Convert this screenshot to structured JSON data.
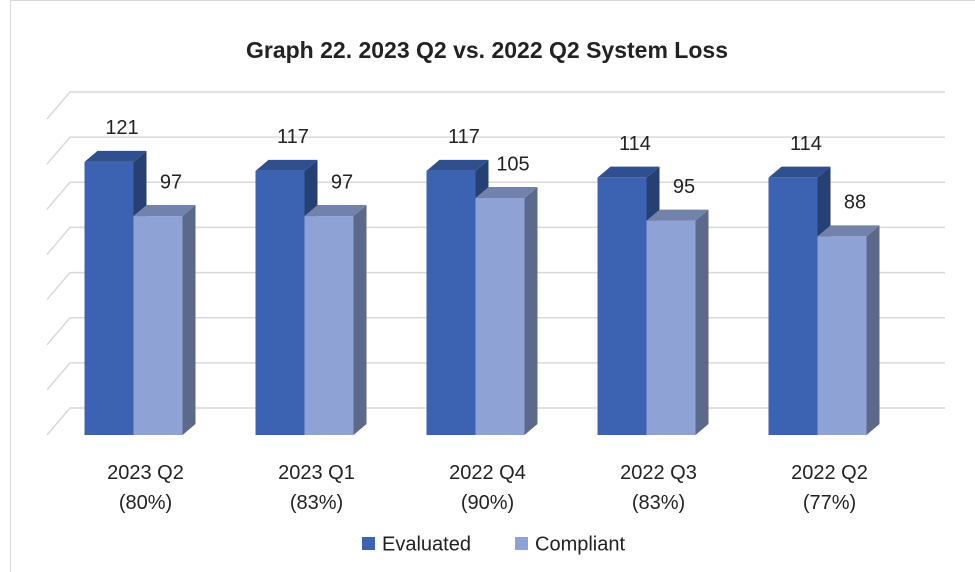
{
  "chart_data": {
    "type": "bar3d",
    "title": "Graph 22. 2023 Q2 vs. 2022 Q2 System Loss",
    "categories": [
      "2023 Q2\n(80%)",
      "2023 Q1\n(83%)",
      "2022 Q4\n(90%)",
      "2022 Q3\n(83%)",
      "2022 Q2\n(77%)"
    ],
    "series": [
      {
        "name": "Evaluated",
        "color": "#3b63b1",
        "values": [
          121,
          117,
          117,
          114,
          114
        ]
      },
      {
        "name": "Compliant",
        "color": "#8fa2d6",
        "values": [
          97,
          97,
          105,
          95,
          88
        ]
      }
    ],
    "ylim": [
      0,
      140
    ],
    "yticks": [
      0,
      20,
      40,
      60,
      80,
      100,
      120,
      140
    ],
    "grid": true
  }
}
